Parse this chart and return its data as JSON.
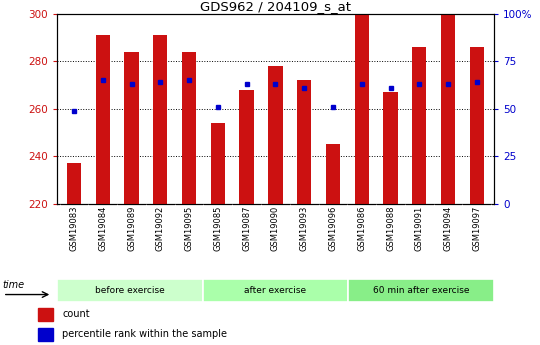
{
  "title": "GDS962 / 204109_s_at",
  "samples": [
    "GSM19083",
    "GSM19084",
    "GSM19089",
    "GSM19092",
    "GSM19095",
    "GSM19085",
    "GSM19087",
    "GSM19090",
    "GSM19093",
    "GSM19096",
    "GSM19086",
    "GSM19088",
    "GSM19091",
    "GSM19094",
    "GSM19097"
  ],
  "count_values": [
    237,
    291,
    284,
    291,
    284,
    254,
    268,
    278,
    272,
    245,
    300,
    267,
    286,
    300,
    286
  ],
  "percentile_values": [
    49,
    65,
    63,
    64,
    65,
    51,
    63,
    63,
    61,
    51,
    63,
    61,
    63,
    63,
    64
  ],
  "groups": [
    {
      "label": "before exercise",
      "start": 0,
      "end": 5,
      "color": "#ccffcc"
    },
    {
      "label": "after exercise",
      "start": 5,
      "end": 10,
      "color": "#aaffaa"
    },
    {
      "label": "60 min after exercise",
      "start": 10,
      "end": 15,
      "color": "#88ee88"
    }
  ],
  "bar_bottom": 220,
  "ylim_left": [
    220,
    300
  ],
  "ylim_right": [
    0,
    100
  ],
  "yticks_left": [
    220,
    240,
    260,
    280,
    300
  ],
  "yticks_right": [
    0,
    25,
    50,
    75,
    100
  ],
  "ytick_labels_right": [
    "0",
    "25",
    "50",
    "75",
    "100%"
  ],
  "bar_color": "#cc1111",
  "dot_color": "#0000cc",
  "left_tick_color": "#cc1111",
  "right_tick_color": "#0000cc",
  "bg_color": "#ffffff",
  "plot_bg_color": "#ffffff",
  "tick_label_area_color": "#c8c8c8",
  "legend_count_color": "#cc1111",
  "legend_dot_color": "#0000cc",
  "figsize": [
    5.4,
    3.45
  ],
  "dpi": 100
}
